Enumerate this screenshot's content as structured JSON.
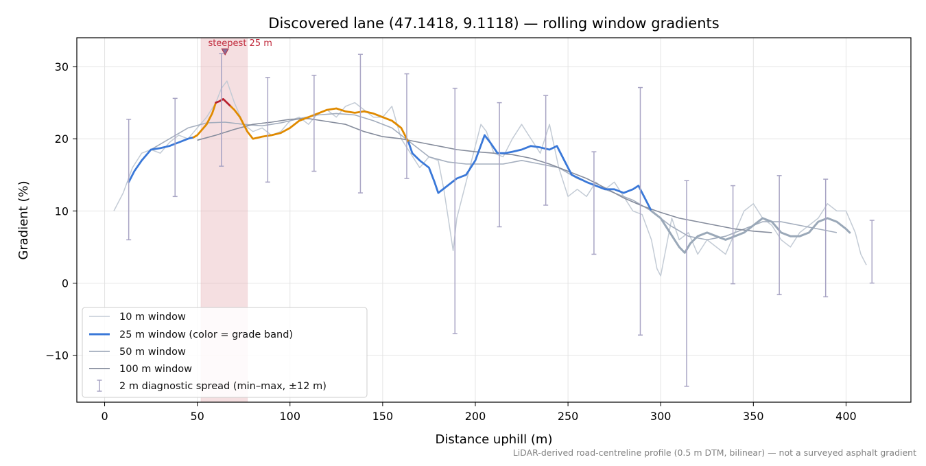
{
  "chart_data": {
    "type": "line",
    "title": "Discovered lane (47.1418, 9.1118) — rolling window gradients",
    "xlabel": "Distance uphill (m)",
    "ylabel": "Gradient (%)",
    "xlim": [
      -15,
      435
    ],
    "ylim": [
      -16.5,
      34
    ],
    "xticks": [
      0,
      50,
      100,
      150,
      200,
      250,
      300,
      350,
      400
    ],
    "yticks": [
      -10,
      0,
      10,
      20,
      30
    ],
    "grid": true,
    "legend_position": "lower-left",
    "footnote": "LiDAR-derived road-centreline profile (0.5 m DTM, bilinear) — not a surveyed asphalt gradient",
    "highlight": {
      "x_range": [
        52,
        77
      ],
      "color": "#e8b4b8",
      "label": "steepest 25 m",
      "marker_x": 65,
      "marker_y": 32
    },
    "colors": {
      "w10": "#c3cbd5",
      "w25_blue": "#3a78d8",
      "w25_orange": "#e08a00",
      "w25_red": "#b8202e",
      "w25_gray": "#9aa8b8",
      "w50": "#a3adbd",
      "w100": "#858c9c",
      "errbar": "#a8a4c4",
      "highlight_band": "#e8b4b8"
    },
    "series": [
      {
        "name": "10 m window",
        "x": [
          5,
          10,
          15,
          20,
          25,
          30,
          35,
          40,
          45,
          50,
          55,
          60,
          63,
          66,
          70,
          75,
          80,
          85,
          90,
          95,
          100,
          105,
          110,
          115,
          120,
          125,
          130,
          135,
          140,
          145,
          150,
          155,
          160,
          165,
          170,
          175,
          180,
          183,
          186,
          188,
          190,
          193,
          196,
          200,
          203,
          206,
          210,
          215,
          220,
          225,
          230,
          235,
          240,
          245,
          250,
          255,
          260,
          265,
          270,
          275,
          280,
          285,
          290,
          295,
          298,
          300,
          303,
          306,
          310,
          315,
          320,
          325,
          330,
          335,
          340,
          345,
          350,
          355,
          360,
          365,
          370,
          375,
          380,
          385,
          390,
          395,
          400,
          405,
          408,
          411
        ],
        "values": [
          10,
          12.5,
          16,
          18,
          18.5,
          18,
          19.5,
          20.5,
          20,
          21.5,
          23,
          25,
          27,
          28,
          25,
          22,
          21,
          21.5,
          20.5,
          21,
          22.5,
          23,
          22,
          23.5,
          24,
          23,
          24.5,
          25,
          24,
          23,
          23,
          24.5,
          20,
          18,
          16,
          17.5,
          17,
          13,
          8,
          4.5,
          9,
          12,
          15,
          19,
          22,
          21,
          18,
          17.5,
          20,
          22,
          20,
          18,
          22,
          16,
          12,
          13,
          12,
          14,
          13,
          14,
          12,
          10,
          9.5,
          6,
          2,
          1,
          5,
          9,
          6,
          7,
          4,
          6,
          5,
          4,
          7,
          10,
          11,
          9,
          8,
          6,
          5,
          7,
          8,
          9,
          11,
          10,
          10,
          7,
          4,
          2.5
        ]
      },
      {
        "name": "25 m window (color = grade band)",
        "x": [
          13,
          16,
          20,
          25,
          30,
          35,
          40,
          45,
          48,
          50,
          55,
          58,
          60,
          62,
          64,
          66,
          68,
          70,
          73,
          77,
          80,
          85,
          90,
          95,
          100,
          105,
          110,
          115,
          120,
          125,
          130,
          135,
          140,
          145,
          150,
          155,
          160,
          164,
          166,
          170,
          175,
          178,
          180,
          185,
          190,
          195,
          200,
          205,
          208,
          212,
          216,
          220,
          225,
          230,
          235,
          240,
          244,
          248,
          252,
          256,
          260,
          265,
          270,
          275,
          280,
          285,
          288,
          291,
          295,
          300,
          305,
          310,
          313,
          316,
          320,
          325,
          330,
          335,
          340,
          345,
          350,
          355,
          360,
          365,
          370,
          375,
          380,
          385,
          390,
          395,
          400,
          402
        ],
        "values": [
          14,
          15.5,
          17,
          18.5,
          18.7,
          19,
          19.5,
          20,
          20.2,
          20.5,
          22,
          23.5,
          25,
          25.2,
          25.5,
          25,
          24.5,
          24,
          23,
          21,
          20,
          20.3,
          20.5,
          20.8,
          21.5,
          22.5,
          23,
          23.5,
          24,
          24.2,
          23.8,
          23.6,
          23.8,
          23.5,
          23,
          22.5,
          21.5,
          19.5,
          18,
          17,
          16,
          14,
          12.5,
          13.5,
          14.5,
          15,
          17,
          20.5,
          19.5,
          18,
          18,
          18.2,
          18.5,
          19,
          18.8,
          18.5,
          19,
          17,
          15,
          14.5,
          14,
          13.5,
          13,
          13,
          12.5,
          13,
          13.5,
          12,
          10,
          9,
          7,
          5,
          4.2,
          5.5,
          6.5,
          7,
          6.5,
          6,
          6.5,
          7,
          8,
          9,
          8.5,
          7,
          6.5,
          6.5,
          7,
          8.5,
          9,
          8.5,
          7.5,
          7
        ],
        "band_colors": [
          "blue",
          "blue",
          "blue",
          "blue",
          "blue",
          "blue",
          "blue",
          "blue",
          "orange",
          "orange",
          "orange",
          "orange",
          "red",
          "red",
          "red",
          "red",
          "orange",
          "orange",
          "orange",
          "orange",
          "orange",
          "orange",
          "orange",
          "orange",
          "orange",
          "orange",
          "orange",
          "orange",
          "orange",
          "orange",
          "orange",
          "orange",
          "orange",
          "orange",
          "orange",
          "orange",
          "orange",
          "blue",
          "blue",
          "blue",
          "blue",
          "blue",
          "blue",
          "blue",
          "blue",
          "blue",
          "blue",
          "blue",
          "blue",
          "blue",
          "blue",
          "blue",
          "blue",
          "blue",
          "blue",
          "blue",
          "blue",
          "blue",
          "blue",
          "blue",
          "blue",
          "blue",
          "blue",
          "blue",
          "blue",
          "blue",
          "blue",
          "blue",
          "gray",
          "gray",
          "gray",
          "gray",
          "gray",
          "gray",
          "gray",
          "gray",
          "gray",
          "gray",
          "gray",
          "gray",
          "gray",
          "gray",
          "gray",
          "gray",
          "gray",
          "gray",
          "gray",
          "gray",
          "gray",
          "gray",
          "gray",
          "gray"
        ]
      },
      {
        "name": "50 m window",
        "x": [
          25,
          35,
          45,
          55,
          65,
          75,
          85,
          95,
          105,
          115,
          125,
          135,
          145,
          155,
          165,
          175,
          185,
          195,
          205,
          215,
          225,
          235,
          245,
          255,
          265,
          275,
          285,
          295,
          305,
          315,
          325,
          335,
          345,
          355,
          365,
          375,
          385,
          395
        ],
        "values": [
          18.5,
          20,
          21.5,
          22.2,
          22.3,
          22,
          21.8,
          22.2,
          22.8,
          23.3,
          23.5,
          23.3,
          22.5,
          21.5,
          19.5,
          17.5,
          16.8,
          16.5,
          16.5,
          16.5,
          17,
          16.5,
          16,
          14.5,
          13.5,
          12.5,
          11.5,
          10,
          8,
          6.5,
          6,
          6.5,
          7.5,
          8.5,
          8.5,
          8,
          7.5,
          7
        ]
      },
      {
        "name": "100 m window",
        "x": [
          50,
          60,
          70,
          80,
          90,
          100,
          110,
          120,
          130,
          140,
          150,
          160,
          170,
          180,
          190,
          200,
          210,
          220,
          230,
          240,
          250,
          260,
          270,
          280,
          290,
          300,
          310,
          320,
          330,
          340,
          350,
          360
        ],
        "values": [
          19.8,
          20.5,
          21.3,
          22,
          22.3,
          22.7,
          22.8,
          22.4,
          22,
          21,
          20.3,
          20,
          19.5,
          19,
          18.5,
          18.2,
          18,
          17.8,
          17.3,
          16.5,
          15.5,
          14.5,
          13.2,
          11.8,
          10.7,
          9.8,
          9,
          8.5,
          8,
          7.5,
          7.2,
          7
        ]
      }
    ],
    "error_bars": {
      "name": "2 m diagnostic spread (min–max, ±12 m)",
      "x": [
        13,
        38,
        63,
        88,
        113,
        138,
        163,
        189,
        213,
        238,
        264,
        289,
        314,
        339,
        364,
        389,
        414
      ],
      "low": [
        6,
        12,
        16.2,
        14,
        15.5,
        12.5,
        14.5,
        -7,
        7.8,
        10.8,
        4,
        -7.2,
        -14.3,
        -0.1,
        -1.6,
        -1.9,
        0
      ],
      "high": [
        22.7,
        25.6,
        31.8,
        28.5,
        28.8,
        31.7,
        29,
        27,
        25,
        26,
        18.2,
        27.1,
        14.2,
        13.5,
        14.9,
        14.4,
        8.7
      ]
    }
  }
}
